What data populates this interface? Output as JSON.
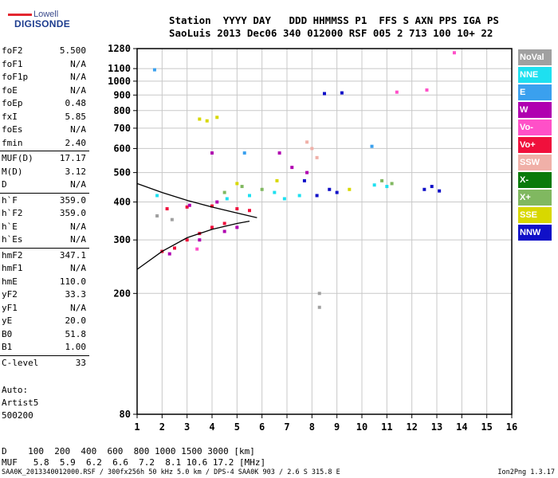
{
  "logo": {
    "line1": "Lowell",
    "line2": "DIGISONDE"
  },
  "header": {
    "labels": "Station  YYYY DAY   DDD HHMMSS P1  FFS S AXN PPS IGA PS",
    "values": "SaoLuis 2013 Dec06 340 012000 RSF 005 2 713 100 10+ 22"
  },
  "params": [
    [
      {
        "k": "foF2",
        "v": "5.500"
      },
      {
        "k": "foF1",
        "v": "N/A"
      },
      {
        "k": "foF1p",
        "v": "N/A"
      },
      {
        "k": "foE",
        "v": "N/A"
      },
      {
        "k": "foEp",
        "v": "0.48"
      },
      {
        "k": "fxI",
        "v": "5.85"
      },
      {
        "k": "foEs",
        "v": "N/A"
      },
      {
        "k": "fmin",
        "v": "2.40"
      }
    ],
    [
      {
        "k": "MUF(D)",
        "v": "17.17"
      },
      {
        "k": "M(D)",
        "v": "3.12"
      },
      {
        "k": "D",
        "v": "N/A"
      }
    ],
    [
      {
        "k": "h`F",
        "v": "359.0"
      },
      {
        "k": "h`F2",
        "v": "359.0"
      },
      {
        "k": "h`E",
        "v": "N/A"
      },
      {
        "k": "h`Es",
        "v": "N/A"
      }
    ],
    [
      {
        "k": "hmF2",
        "v": "347.1"
      },
      {
        "k": "hmF1",
        "v": "N/A"
      },
      {
        "k": "hmE",
        "v": "110.0"
      },
      {
        "k": "yF2",
        "v": "33.3"
      },
      {
        "k": "yF1",
        "v": "N/A"
      },
      {
        "k": "yE",
        "v": "20.0"
      },
      {
        "k": "B0",
        "v": "51.8"
      },
      {
        "k": "B1",
        "v": "1.00"
      }
    ],
    [
      {
        "k": "C-level",
        "v": "33"
      }
    ]
  ],
  "auto": {
    "line1": "Auto:",
    "line2": "Artist5",
    "line3": "500200"
  },
  "legend": [
    {
      "label": "NoVal",
      "color": "#a0a0a0"
    },
    {
      "label": "NNE",
      "color": "#1ee0f0"
    },
    {
      "label": "E",
      "color": "#3aa0ee"
    },
    {
      "label": "W",
      "color": "#b000b0"
    },
    {
      "label": "Vo-",
      "color": "#ff50c8"
    },
    {
      "label": "Vo+",
      "color": "#f0103c"
    },
    {
      "label": "SSW",
      "color": "#f0b0a8"
    },
    {
      "label": "X-",
      "color": "#0a7a0a"
    },
    {
      "label": "X+",
      "color": "#80b860"
    },
    {
      "label": "SSE",
      "color": "#d8d800"
    },
    {
      "label": "NNW",
      "color": "#1010c8"
    }
  ],
  "muf_table": {
    "d_row": "D    100  200  400  600  800 1000 1500 3000 [km]",
    "muf_row": "MUF   5.8  5.9  6.2  6.6  7.2  8.1 10.6 17.2 [MHz]"
  },
  "footer": "SAA0K_2013340012000.RSF / 300fx256h 50 kHz 5.0 km / DPS-4 SAA0K 903 / 2.6 S 315.8 E",
  "version": "Ion2Png 1.3.17",
  "chart_data": {
    "type": "scatter",
    "xlim": [
      1,
      16
    ],
    "ylim": [
      80,
      1280
    ],
    "y_scale": "log",
    "x_ticks": [
      1,
      2,
      3,
      4,
      5,
      6,
      7,
      8,
      9,
      10,
      11,
      12,
      13,
      14,
      15,
      16
    ],
    "y_ticks": [
      80,
      200,
      300,
      400,
      500,
      600,
      700,
      800,
      900,
      1000,
      1100,
      1280
    ],
    "grid": true,
    "legend_position": "right",
    "series": [
      {
        "name": "Vo+",
        "color": "#f0103c",
        "points": [
          [
            2.0,
            275
          ],
          [
            2.5,
            282
          ],
          [
            3.0,
            300
          ],
          [
            3.5,
            315
          ],
          [
            4.0,
            330
          ],
          [
            4.5,
            340
          ],
          [
            2.2,
            380
          ],
          [
            3.0,
            385
          ],
          [
            4.0,
            388
          ],
          [
            5.0,
            380
          ],
          [
            5.5,
            375
          ]
        ]
      },
      {
        "name": "W",
        "color": "#b000b0",
        "points": [
          [
            2.3,
            270
          ],
          [
            3.5,
            300
          ],
          [
            4.5,
            320
          ],
          [
            5.0,
            330
          ],
          [
            3.1,
            390
          ],
          [
            4.2,
            400
          ],
          [
            4.0,
            580
          ],
          [
            7.2,
            520
          ],
          [
            6.7,
            580
          ],
          [
            7.8,
            500
          ]
        ]
      },
      {
        "name": "NNW",
        "color": "#1010c8",
        "points": [
          [
            7.7,
            470
          ],
          [
            8.2,
            420
          ],
          [
            8.7,
            440
          ],
          [
            9.0,
            430
          ],
          [
            12.5,
            440
          ],
          [
            12.8,
            450
          ],
          [
            13.1,
            435
          ],
          [
            8.5,
            910
          ],
          [
            9.2,
            915
          ]
        ]
      },
      {
        "name": "NNE",
        "color": "#1ee0f0",
        "points": [
          [
            1.8,
            420
          ],
          [
            4.6,
            410
          ],
          [
            5.5,
            420
          ],
          [
            6.5,
            430
          ],
          [
            6.9,
            410
          ],
          [
            7.5,
            420
          ],
          [
            10.5,
            455
          ],
          [
            11.0,
            450
          ]
        ]
      },
      {
        "name": "SSE",
        "color": "#d8d800",
        "points": [
          [
            3.5,
            750
          ],
          [
            3.8,
            740
          ],
          [
            4.2,
            760
          ],
          [
            5.0,
            460
          ],
          [
            6.6,
            470
          ],
          [
            9.5,
            440
          ]
        ]
      },
      {
        "name": "X+",
        "color": "#80b860",
        "points": [
          [
            4.5,
            430
          ],
          [
            5.2,
            450
          ],
          [
            6.0,
            440
          ],
          [
            10.8,
            470
          ],
          [
            11.2,
            460
          ]
        ]
      },
      {
        "name": "Vo-",
        "color": "#ff50c8",
        "points": [
          [
            3.4,
            280
          ],
          [
            11.4,
            920
          ],
          [
            12.6,
            935
          ],
          [
            13.7,
            1240
          ]
        ]
      },
      {
        "name": "E",
        "color": "#3aa0ee",
        "points": [
          [
            5.3,
            580
          ],
          [
            10.4,
            610
          ],
          [
            1.7,
            1090
          ]
        ]
      },
      {
        "name": "SSW",
        "color": "#f0b0a8",
        "points": [
          [
            8.0,
            600
          ],
          [
            7.8,
            630
          ],
          [
            8.2,
            560
          ]
        ]
      },
      {
        "name": "NoVal",
        "color": "#a0a0a0",
        "points": [
          [
            1.8,
            360
          ],
          [
            2.4,
            350
          ],
          [
            8.3,
            180
          ],
          [
            8.3,
            200
          ]
        ]
      }
    ],
    "trace_curves": [
      {
        "points": [
          [
            1.0,
            240
          ],
          [
            2.0,
            275
          ],
          [
            3.0,
            305
          ],
          [
            4.0,
            325
          ],
          [
            5.0,
            340
          ],
          [
            5.5,
            346
          ]
        ]
      },
      {
        "points": [
          [
            1.0,
            460
          ],
          [
            2.0,
            430
          ],
          [
            3.0,
            405
          ],
          [
            4.0,
            385
          ],
          [
            5.0,
            368
          ],
          [
            5.8,
            355
          ]
        ]
      }
    ]
  }
}
